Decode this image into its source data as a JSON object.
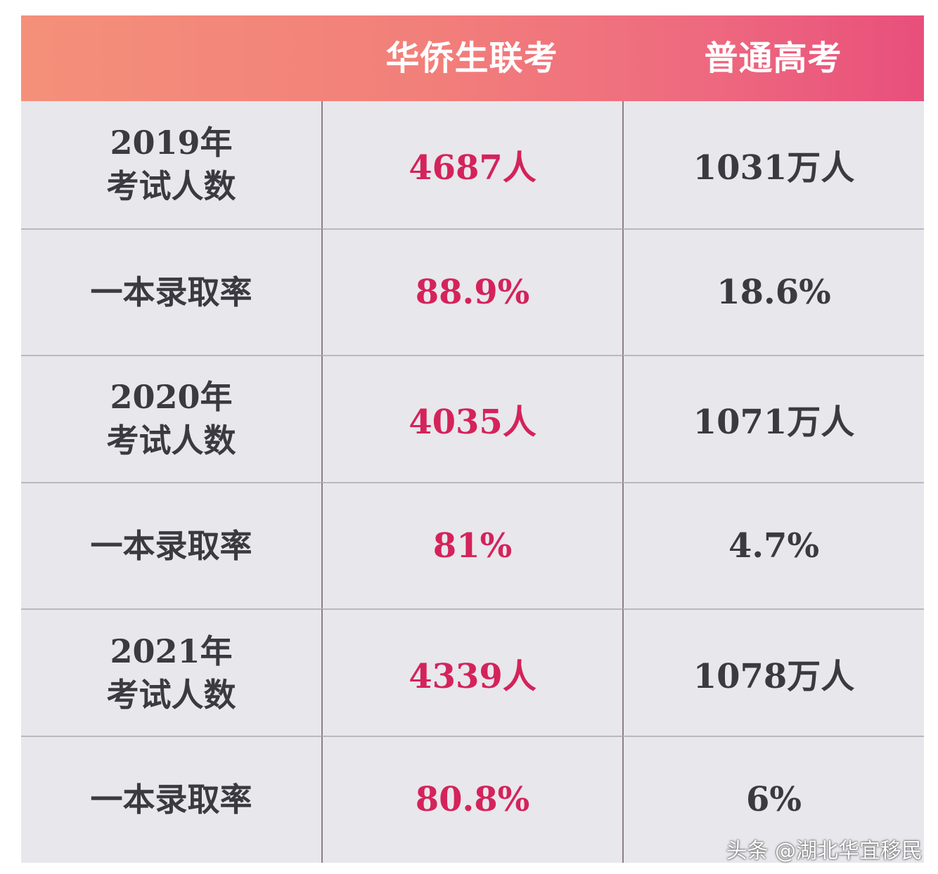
{
  "header": {
    "col1": "",
    "col2": "华侨生联考",
    "col3": "普通高考"
  },
  "rows": [
    {
      "label_line1": "2019年",
      "label_line2": "考试人数",
      "overseas": "4687人",
      "regular": "1031万人"
    },
    {
      "label_line1": "一本录取率",
      "label_line2": "",
      "overseas": "88.9%",
      "regular": "18.6%"
    },
    {
      "label_line1": "2020年",
      "label_line2": "考试人数",
      "overseas": "4035人",
      "regular": "1071万人"
    },
    {
      "label_line1": "一本录取率",
      "label_line2": "",
      "overseas": "81%",
      "regular": "4.7%"
    },
    {
      "label_line1": "2021年",
      "label_line2": "考试人数",
      "overseas": "4339人",
      "regular": "1078万人"
    },
    {
      "label_line1": "一本录取率",
      "label_line2": "",
      "overseas": "80.8%",
      "regular": "6%"
    }
  ],
  "watermark": "头条 @湖北华宜移民",
  "colors": {
    "header_start": "#f4907a",
    "header_end": "#e84f7b",
    "highlight_value": "#d4235a",
    "normal_value": "#3a3a40",
    "cell_background": "#e8e7ec"
  }
}
